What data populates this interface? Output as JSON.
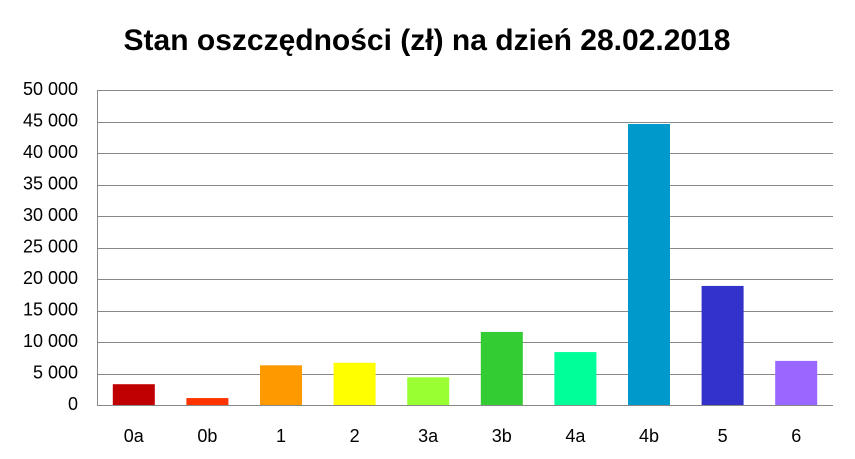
{
  "chart_data": {
    "type": "bar",
    "title": "Stan oszczędności (zł) na dzień 28.02.2018",
    "categories": [
      "0a",
      "0b",
      "1",
      "2",
      "3a",
      "3b",
      "4a",
      "4b",
      "5",
      "6"
    ],
    "values": [
      3300,
      1100,
      6300,
      6700,
      4400,
      11600,
      8400,
      44600,
      18900,
      7000
    ],
    "colors": [
      "#c00000",
      "#ff3300",
      "#ff9900",
      "#ffff00",
      "#99ff33",
      "#33cc33",
      "#00ff99",
      "#0099cc",
      "#3333cc",
      "#9966ff"
    ],
    "ylim": [
      0,
      50000
    ],
    "yticks": [
      0,
      {
        "value": 5000,
        "label": "5 000"
      },
      {
        "value": 10000,
        "label": "10 000"
      },
      {
        "value": 15000,
        "label": "15 000"
      },
      {
        "value": 20000,
        "label": "20 000"
      },
      {
        "value": 25000,
        "label": "25 000"
      },
      {
        "value": 30000,
        "label": "30 000"
      },
      {
        "value": 35000,
        "label": "35 000"
      },
      {
        "value": 40000,
        "label": "40 000"
      },
      {
        "value": 45000,
        "label": "45 000"
      },
      {
        "value": 50000,
        "label": "50 000"
      }
    ],
    "grid": true
  }
}
